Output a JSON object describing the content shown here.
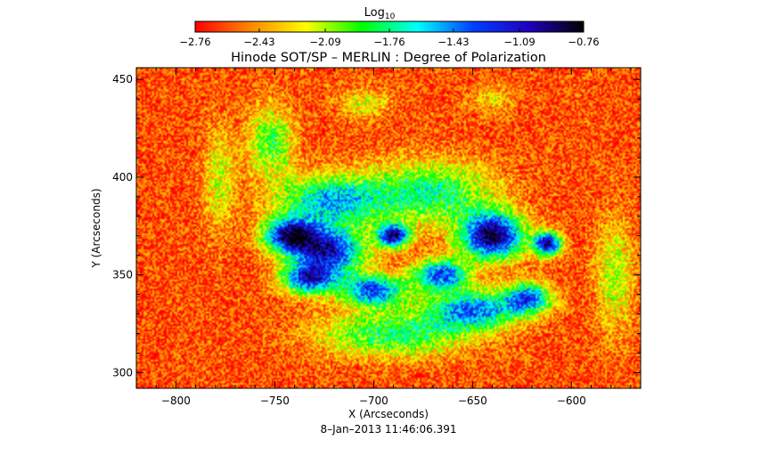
{
  "chart_data": {
    "type": "heatmap",
    "title": "Hinode SOT/SP – MERLIN : Degree of Polarization",
    "xlabel": "X (Arcseconds)",
    "ylabel": "Y (Arcseconds)",
    "footer": "8–Jan–2013 11:46:06.391",
    "xlim": [
      -820,
      -565
    ],
    "ylim": [
      292,
      456
    ],
    "x_ticks": [
      {
        "value": -800,
        "label": "−800"
      },
      {
        "value": -750,
        "label": "−750"
      },
      {
        "value": -700,
        "label": "−700"
      },
      {
        "value": -650,
        "label": "−650"
      },
      {
        "value": -600,
        "label": "−600"
      }
    ],
    "y_ticks": [
      {
        "value": 300,
        "label": "300"
      },
      {
        "value": 350,
        "label": "350"
      },
      {
        "value": 400,
        "label": "400"
      },
      {
        "value": 450,
        "label": "450"
      }
    ],
    "colorbar": {
      "label_main": "Log",
      "label_sub": "10",
      "min": -2.76,
      "max": -0.76,
      "ticks": [
        {
          "value": -2.76,
          "label": "−2.76"
        },
        {
          "value": -2.43,
          "label": "−2.43"
        },
        {
          "value": -2.09,
          "label": "−2.09"
        },
        {
          "value": -1.76,
          "label": "−1.76"
        },
        {
          "value": -1.43,
          "label": "−1.43"
        },
        {
          "value": -1.09,
          "label": "−1.09"
        },
        {
          "value": -0.76,
          "label": "−0.76"
        }
      ],
      "colormap": [
        "#ff0000",
        "#ff8800",
        "#ffff00",
        "#00ff00",
        "#00ffff",
        "#0040ff",
        "#2000c0",
        "#000000"
      ]
    },
    "background_level": -2.6,
    "features": [
      {
        "x": -742,
        "y": 370,
        "rx": 14,
        "ry": 9,
        "value": -1.05
      },
      {
        "x": -722,
        "y": 362,
        "rx": 18,
        "ry": 12,
        "value": -1.2
      },
      {
        "x": -733,
        "y": 348,
        "rx": 14,
        "ry": 8,
        "value": -1.3
      },
      {
        "x": -690,
        "y": 370,
        "rx": 8,
        "ry": 6,
        "value": -1.05
      },
      {
        "x": -700,
        "y": 342,
        "rx": 16,
        "ry": 8,
        "value": -1.3
      },
      {
        "x": -666,
        "y": 350,
        "rx": 14,
        "ry": 8,
        "value": -1.3
      },
      {
        "x": -640,
        "y": 370,
        "rx": 16,
        "ry": 12,
        "value": -0.85
      },
      {
        "x": -612,
        "y": 366,
        "rx": 7,
        "ry": 6,
        "value": -1.0
      },
      {
        "x": -622,
        "y": 338,
        "rx": 12,
        "ry": 8,
        "value": -1.35
      },
      {
        "x": -722,
        "y": 388,
        "rx": 26,
        "ry": 13,
        "value": -1.55
      },
      {
        "x": -672,
        "y": 392,
        "rx": 32,
        "ry": 16,
        "value": -1.75
      },
      {
        "x": -690,
        "y": 320,
        "rx": 38,
        "ry": 12,
        "value": -1.8
      },
      {
        "x": -650,
        "y": 332,
        "rx": 22,
        "ry": 10,
        "value": -1.45
      },
      {
        "x": -752,
        "y": 418,
        "rx": 12,
        "ry": 18,
        "value": -1.9
      },
      {
        "x": -778,
        "y": 400,
        "rx": 8,
        "ry": 26,
        "value": -2.15
      },
      {
        "x": -578,
        "y": 350,
        "rx": 10,
        "ry": 30,
        "value": -2.1
      },
      {
        "x": -705,
        "y": 438,
        "rx": 14,
        "ry": 8,
        "value": -2.2
      },
      {
        "x": -640,
        "y": 440,
        "rx": 12,
        "ry": 8,
        "value": -2.3
      }
    ]
  }
}
